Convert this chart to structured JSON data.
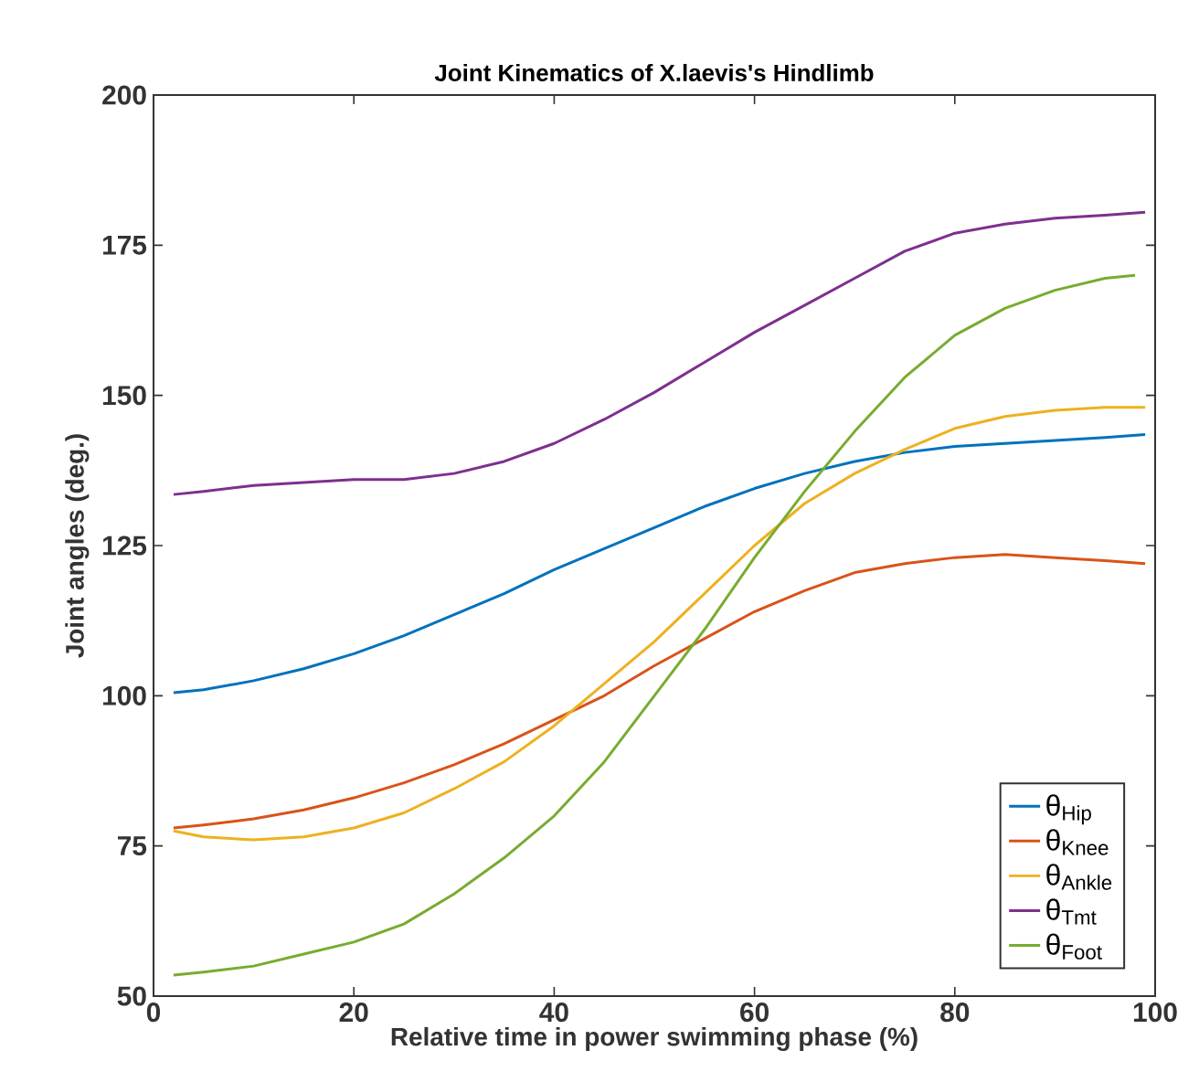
{
  "chart_data": {
    "type": "line",
    "title": "Joint Kinematics of X.laevis's Hindlimb",
    "xlabel": "Relative time in power swimming phase (%)",
    "ylabel": "Joint angles (deg.)",
    "x": [
      2,
      5,
      10,
      15,
      20,
      25,
      30,
      35,
      40,
      45,
      50,
      55,
      60,
      65,
      70,
      75,
      80,
      85,
      90,
      95,
      99
    ],
    "series": [
      {
        "name": "θ$_{Hip}$",
        "color": "#0072bd",
        "values": [
          100.5,
          101,
          102.5,
          104.5,
          107,
          110,
          113.5,
          117,
          121,
          124.5,
          128,
          131.5,
          134.5,
          137,
          139,
          140.5,
          141.5,
          142,
          142.5,
          143,
          143.5
        ]
      },
      {
        "name": "θ$_{Knee}$",
        "color": "#d95319",
        "values": [
          78,
          78.5,
          79.5,
          81,
          83,
          85.5,
          88.5,
          92,
          96,
          100,
          105,
          109.5,
          114,
          117.5,
          120.5,
          122,
          123,
          123.5,
          123,
          122.5,
          122
        ]
      },
      {
        "name": "θ$_{Ankle}$",
        "color": "#edb120",
        "values": [
          77.5,
          76.5,
          76,
          76.5,
          78,
          80.5,
          84.5,
          89,
          95,
          102,
          109,
          117,
          125,
          132,
          137,
          141,
          144.5,
          146.5,
          147.5,
          148,
          148
        ]
      },
      {
        "name": "θ$_{Tmt}$",
        "color": "#7e2f8e",
        "values": [
          133.5,
          134,
          135,
          135.5,
          136,
          136,
          137,
          139,
          142,
          146,
          150.5,
          155.5,
          160.5,
          165,
          169.5,
          174,
          177,
          178.5,
          179.5,
          180,
          180.5
        ]
      },
      {
        "name": "θ$_{Foot}$",
        "color": "#77ac30",
        "x": [
          2,
          5,
          10,
          15,
          20,
          25,
          30,
          35,
          40,
          45,
          50,
          55,
          60,
          65,
          70,
          75,
          80,
          85,
          90,
          95,
          98
        ],
        "values": [
          53.5,
          54,
          55,
          57,
          59,
          62,
          67,
          73,
          80,
          89,
          100,
          111,
          123,
          134,
          144,
          153,
          160,
          164.5,
          167.5,
          169.5,
          170
        ]
      }
    ],
    "xlim": [
      0,
      100
    ],
    "ylim": [
      50,
      200
    ],
    "xticks": [
      0,
      20,
      40,
      60,
      80,
      100
    ],
    "yticks": [
      50,
      75,
      100,
      125,
      150,
      175,
      200
    ],
    "legend": "bottom right",
    "grid": false,
    "marker": "none",
    "line_style": "solid"
  }
}
